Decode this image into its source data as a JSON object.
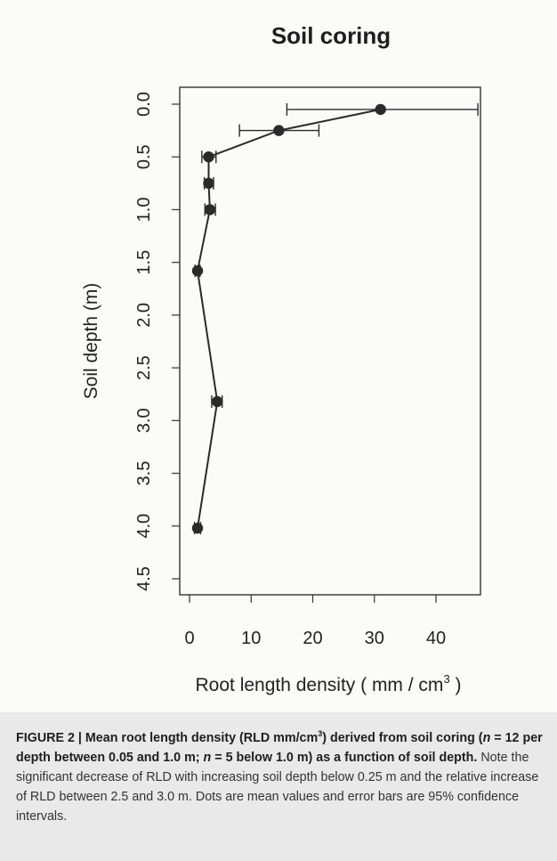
{
  "chart_data": {
    "type": "scatter",
    "title": "Soil coring",
    "xlabel": "Root length density ( mm / cm",
    "xlabel_sup": "3",
    "xlabel_end": " )",
    "ylabel": "Soil depth (m)",
    "xlim": [
      -2,
      47
    ],
    "ylim": [
      4.5,
      0.0
    ],
    "y_reversed": true,
    "x_ticks": [
      0,
      10,
      20,
      30,
      40
    ],
    "x_tick_labels": [
      "0",
      "10",
      "20",
      "30",
      "40"
    ],
    "y_ticks": [
      0.0,
      0.5,
      1.0,
      1.5,
      2.0,
      2.5,
      3.0,
      3.5,
      4.0,
      4.5
    ],
    "y_tick_labels": [
      "0.0",
      "0.5",
      "1.0",
      "1.5",
      "2.0",
      "2.5",
      "3.0",
      "3.5",
      "4.0",
      "4.5"
    ],
    "connected_line": true,
    "grid": false,
    "points": [
      {
        "depth": 0.05,
        "rld": 31.0,
        "ci_low": 15.8,
        "ci_high": 46.8
      },
      {
        "depth": 0.25,
        "rld": 14.5,
        "ci_low": 8.1,
        "ci_high": 21.0
      },
      {
        "depth": 0.5,
        "rld": 3.1,
        "ci_low": 2.0,
        "ci_high": 4.3
      },
      {
        "depth": 0.75,
        "rld": 3.1,
        "ci_low": 2.4,
        "ci_high": 3.9
      },
      {
        "depth": 1.0,
        "rld": 3.3,
        "ci_low": 2.5,
        "ci_high": 4.2
      },
      {
        "depth": 1.58,
        "rld": 1.3,
        "ci_low": 0.9,
        "ci_high": 1.7
      },
      {
        "depth": 2.82,
        "rld": 4.5,
        "ci_low": 3.6,
        "ci_high": 5.3
      },
      {
        "depth": 4.02,
        "rld": 1.3,
        "ci_low": 0.8,
        "ci_high": 1.8
      }
    ],
    "colors": {
      "marker": "#2a2a2a",
      "line": "#2a2a2a",
      "axis": "#333333"
    }
  },
  "caption": {
    "bold_1": "FIGURE 2 | Mean root length density (RLD mm/cm",
    "bold_sup": "3",
    "bold_2": ") derived from soil coring (",
    "n_var_1": "n",
    "bold_3": " = 12 per depth between 0.05 and 1.0 m; ",
    "n_var_2": "n",
    "bold_4": " = 5 below 1.0 m) as a function of soil depth.",
    "normal": " Note the significant decrease of RLD with increasing soil depth below 0.25 m and the relative increase of RLD between 2.5 and 3.0 m. Dots are mean values and error bars are 95% confidence intervals."
  }
}
